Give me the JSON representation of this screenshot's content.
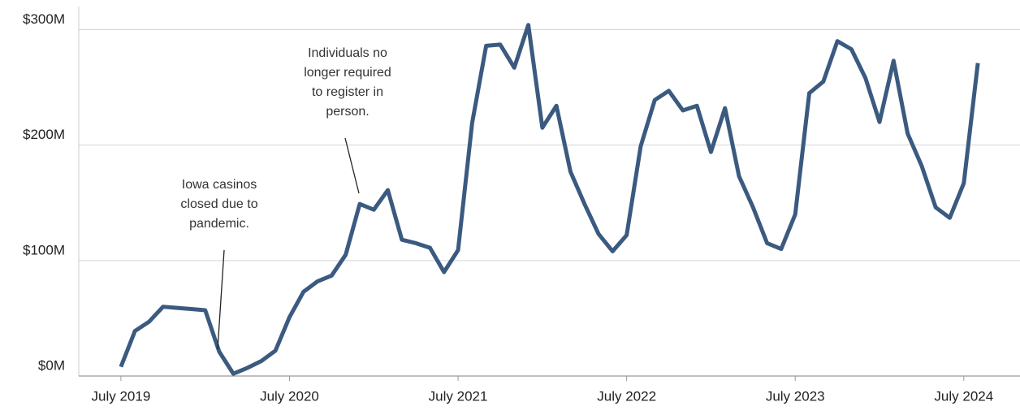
{
  "chart_data": {
    "type": "line",
    "x": [
      "2019-07",
      "2019-08",
      "2019-09",
      "2019-10",
      "2019-11",
      "2019-12",
      "2020-01",
      "2020-02",
      "2020-03",
      "2020-04",
      "2020-05",
      "2020-06",
      "2020-07",
      "2020-08",
      "2020-09",
      "2020-10",
      "2020-11",
      "2020-12",
      "2021-01",
      "2021-02",
      "2021-03",
      "2021-04",
      "2021-05",
      "2021-06",
      "2021-07",
      "2021-08",
      "2021-09",
      "2021-10",
      "2021-11",
      "2021-12",
      "2022-01",
      "2022-02",
      "2022-03",
      "2022-04",
      "2022-05",
      "2022-06",
      "2022-07",
      "2022-08",
      "2022-09",
      "2022-10",
      "2022-11",
      "2022-12",
      "2023-01",
      "2023-02",
      "2023-03",
      "2023-04",
      "2023-05",
      "2023-06",
      "2023-07",
      "2023-08",
      "2023-09",
      "2023-10",
      "2023-11",
      "2023-12",
      "2024-01",
      "2024-02",
      "2024-03",
      "2024-04",
      "2024-05",
      "2024-06",
      "2024-07",
      "2024-08"
    ],
    "series": [
      {
        "color": "#3b5a80",
        "values": [
          8,
          39,
          47,
          60,
          59,
          58,
          57,
          21,
          2,
          7,
          13,
          22,
          51,
          73,
          82,
          87,
          105,
          149,
          144,
          161,
          118,
          115,
          111,
          90,
          109,
          219,
          286,
          287,
          267,
          304,
          215,
          234,
          177,
          149,
          123,
          108,
          122,
          199,
          239,
          247,
          230,
          234,
          194,
          232,
          173,
          146,
          115,
          110,
          140,
          245,
          255,
          290,
          283,
          258,
          220,
          273,
          210,
          182,
          146,
          137,
          167,
          271
        ]
      }
    ],
    "xlim": [
      "2019-04",
      "2024-11"
    ],
    "xticks": [
      {
        "value": "2019-07",
        "label": "July 2019"
      },
      {
        "value": "2020-07",
        "label": "July 2020"
      },
      {
        "value": "2021-07",
        "label": "July 2021"
      },
      {
        "value": "2022-07",
        "label": "July 2022"
      },
      {
        "value": "2023-07",
        "label": "July 2023"
      },
      {
        "value": "2024-07",
        "label": "July 2024"
      }
    ],
    "ylim": [
      0,
      320
    ],
    "yticks": [
      {
        "value": 0,
        "label": "$0M"
      },
      {
        "value": 100,
        "label": "$100M"
      },
      {
        "value": 200,
        "label": "$200M"
      },
      {
        "value": 300,
        "label": "$300M"
      }
    ],
    "grid": true,
    "annotations": [
      {
        "text": [
          "Iowa casinos",
          "closed due to",
          "pandemic."
        ]
      },
      {
        "text": [
          "Individuals no",
          "longer required",
          "to register in",
          "person."
        ]
      }
    ]
  }
}
